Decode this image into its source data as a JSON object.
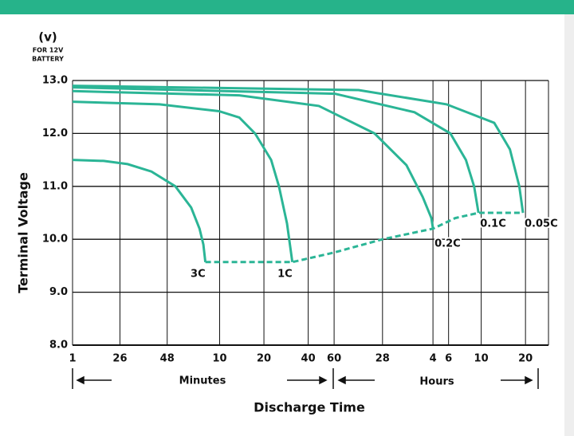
{
  "chart_data": {
    "type": "line",
    "y_unit": "(v)",
    "y_note": [
      "FOR 12V",
      "BATTERY"
    ],
    "ylabel": "Terminal Voltage",
    "xlabel": "Discharge Time",
    "x_groups": [
      "Minutes",
      "Hours"
    ],
    "log_x": true,
    "grid": true,
    "color": "#2bb596",
    "xlim": [
      1,
      1720
    ],
    "ylim": [
      8,
      13
    ],
    "xticks": [
      {
        "value": 1,
        "label": "1"
      },
      {
        "value": 2.1,
        "label": "26"
      },
      {
        "value": 4.4,
        "label": "48"
      },
      {
        "value": 10,
        "label": "10"
      },
      {
        "value": 20,
        "label": "20"
      },
      {
        "value": 40,
        "label": "40"
      },
      {
        "value": 60,
        "label": "60"
      },
      {
        "value": 128,
        "label": "28"
      },
      {
        "value": 282,
        "label": "4"
      },
      {
        "value": 360,
        "label": "6"
      },
      {
        "value": 600,
        "label": "10"
      },
      {
        "value": 1200,
        "label": "20"
      }
    ],
    "yticks": [
      {
        "value": 8,
        "label": "8.0"
      },
      {
        "value": 9,
        "label": "9.0"
      },
      {
        "value": 10,
        "label": "10.0"
      },
      {
        "value": 11,
        "label": "11.0"
      },
      {
        "value": 12,
        "label": "12.0"
      },
      {
        "value": 13,
        "label": "13.0"
      }
    ],
    "series": [
      {
        "name": "3C",
        "x": [
          1,
          1.63,
          2.37,
          3.44,
          5.0,
          6.4,
          7.3,
          7.75,
          8.0
        ],
        "values": [
          11.5,
          11.48,
          11.42,
          11.28,
          11.0,
          10.6,
          10.2,
          9.9,
          9.57
        ]
      },
      {
        "name": "1C",
        "x": [
          1,
          3.9,
          9.9,
          13.6,
          17.4,
          22.4,
          25.3,
          28.7,
          31.2
        ],
        "values": [
          12.6,
          12.55,
          12.42,
          12.3,
          12.0,
          11.5,
          11.0,
          10.3,
          9.57
        ]
      },
      {
        "name": "0.2C",
        "x": [
          1,
          13.6,
          47.3,
          113,
          186,
          240,
          275,
          282
        ],
        "values": [
          12.8,
          12.72,
          12.52,
          12.0,
          11.4,
          10.8,
          10.4,
          10.2
        ]
      },
      {
        "name": "0.1C",
        "x": [
          1,
          60.7,
          211,
          370,
          472,
          537,
          575
        ],
        "values": [
          12.87,
          12.75,
          12.4,
          12.0,
          11.5,
          11.0,
          10.5
        ]
      },
      {
        "name": "0.05C",
        "x": [
          1,
          88,
          349,
          735,
          940,
          1090,
          1154
        ],
        "values": [
          12.9,
          12.82,
          12.55,
          12.2,
          11.7,
          11.0,
          10.5
        ]
      },
      {
        "dashed": true,
        "x": [
          8.0,
          31.2,
          60,
          128,
          282,
          400,
          575,
          1154
        ],
        "values": [
          9.57,
          9.57,
          9.75,
          10.0,
          10.2,
          10.4,
          10.5,
          10.5
        ]
      }
    ]
  }
}
